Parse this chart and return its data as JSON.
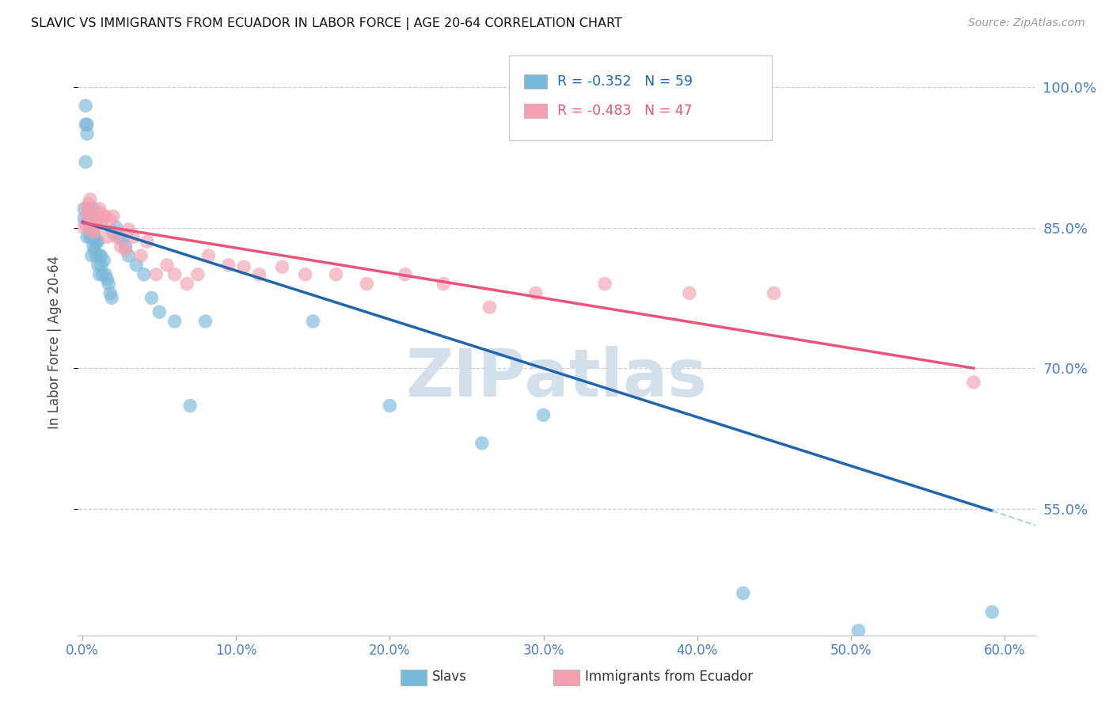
{
  "title": "SLAVIC VS IMMIGRANTS FROM ECUADOR IN LABOR FORCE | AGE 20-64 CORRELATION CHART",
  "source": "Source: ZipAtlas.com",
  "ylabel": "In Labor Force | Age 20-64",
  "xlim": [
    -0.003,
    0.62
  ],
  "ylim": [
    0.415,
    1.04
  ],
  "yticks": [
    0.55,
    0.7,
    0.85,
    1.0
  ],
  "ytick_labels": [
    "55.0%",
    "70.0%",
    "85.0%",
    "100.0%"
  ],
  "xticks": [
    0.0,
    0.1,
    0.2,
    0.3,
    0.4,
    0.5,
    0.6
  ],
  "xtick_labels": [
    "0.0%",
    "10.0%",
    "20.0%",
    "30.0%",
    "40.0%",
    "50.0%",
    "60.0%"
  ],
  "legend_slavs": "Slavs",
  "legend_ecuador": "Immigrants from Ecuador",
  "R_slavs": "-0.352",
  "N_slavs": "59",
  "R_ecuador": "-0.483",
  "N_ecuador": "47",
  "blue_scatter_color": "#7ab8d9",
  "blue_line_color": "#2166ac",
  "pink_scatter_color": "#f4a0b0",
  "pink_line_color": "#e8547a",
  "dashed_color": "#b0cfe0",
  "bg_color": "#ffffff",
  "grid_color": "#cccccc",
  "axis_label_color": "#4a7fc1",
  "title_color": "#111111",
  "watermark_color": "#ccdde8",
  "slavs_x": [
    0.001,
    0.001,
    0.002,
    0.002,
    0.002,
    0.003,
    0.003,
    0.003,
    0.004,
    0.004,
    0.004,
    0.005,
    0.005,
    0.005,
    0.005,
    0.006,
    0.006,
    0.006,
    0.007,
    0.007,
    0.007,
    0.008,
    0.008,
    0.008,
    0.009,
    0.009,
    0.01,
    0.01,
    0.011,
    0.011,
    0.012,
    0.012,
    0.013,
    0.014,
    0.015,
    0.016,
    0.017,
    0.018,
    0.019,
    0.02,
    0.022,
    0.024,
    0.026,
    0.028,
    0.03,
    0.035,
    0.04,
    0.045,
    0.05,
    0.06,
    0.07,
    0.08,
    0.15,
    0.2,
    0.26,
    0.3,
    0.43,
    0.505,
    0.592
  ],
  "slavs_y": [
    0.86,
    0.87,
    0.92,
    0.96,
    0.98,
    0.95,
    0.96,
    0.84,
    0.87,
    0.85,
    0.86,
    0.85,
    0.84,
    0.86,
    0.855,
    0.82,
    0.84,
    0.85,
    0.83,
    0.845,
    0.87,
    0.84,
    0.825,
    0.835,
    0.82,
    0.835,
    0.81,
    0.835,
    0.8,
    0.82,
    0.81,
    0.82,
    0.8,
    0.815,
    0.8,
    0.795,
    0.79,
    0.78,
    0.775,
    0.845,
    0.85,
    0.84,
    0.838,
    0.83,
    0.82,
    0.81,
    0.8,
    0.775,
    0.76,
    0.75,
    0.66,
    0.75,
    0.75,
    0.66,
    0.62,
    0.65,
    0.46,
    0.42,
    0.44
  ],
  "ecuador_x": [
    0.001,
    0.002,
    0.003,
    0.003,
    0.004,
    0.005,
    0.006,
    0.006,
    0.007,
    0.008,
    0.009,
    0.01,
    0.011,
    0.012,
    0.013,
    0.015,
    0.016,
    0.018,
    0.02,
    0.022,
    0.025,
    0.028,
    0.03,
    0.033,
    0.038,
    0.042,
    0.048,
    0.055,
    0.06,
    0.068,
    0.075,
    0.082,
    0.095,
    0.105,
    0.115,
    0.13,
    0.145,
    0.165,
    0.185,
    0.21,
    0.235,
    0.265,
    0.295,
    0.34,
    0.395,
    0.45,
    0.58
  ],
  "ecuador_y": [
    0.85,
    0.855,
    0.865,
    0.87,
    0.875,
    0.88,
    0.85,
    0.86,
    0.845,
    0.86,
    0.85,
    0.858,
    0.87,
    0.865,
    0.858,
    0.862,
    0.84,
    0.858,
    0.862,
    0.84,
    0.83,
    0.826,
    0.848,
    0.84,
    0.82,
    0.835,
    0.8,
    0.81,
    0.8,
    0.79,
    0.8,
    0.82,
    0.81,
    0.808,
    0.8,
    0.808,
    0.8,
    0.8,
    0.79,
    0.8,
    0.79,
    0.765,
    0.78,
    0.79,
    0.78,
    0.78,
    0.685
  ],
  "blue_line_x0": 0.0,
  "blue_line_y0": 0.856,
  "blue_line_x1": 0.592,
  "blue_line_y1": 0.548,
  "pink_line_x0": 0.0,
  "pink_line_y0": 0.855,
  "pink_line_x1": 0.58,
  "pink_line_y1": 0.7,
  "dashed_line_x0": 0.592,
  "dashed_line_y0": 0.548,
  "dashed_line_x1": 0.63,
  "dashed_line_y1": 0.527
}
